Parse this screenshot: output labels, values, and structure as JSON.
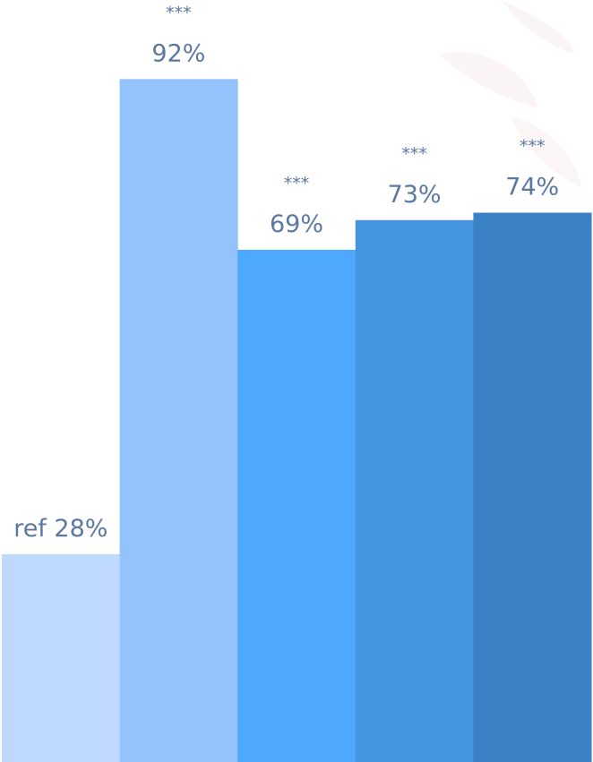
{
  "chart_data": {
    "type": "bar",
    "values": [
      28,
      92,
      69,
      73,
      74
    ],
    "value_labels": [
      "ref 28%",
      "92%",
      "69%",
      "73%",
      "74%"
    ],
    "annotations": [
      null,
      "***",
      "***",
      "***",
      "***"
    ],
    "colors": [
      "#bfd8fd",
      "#93c2fd",
      "#4ea8fd",
      "#4594e0",
      "#3b82c4"
    ]
  }
}
